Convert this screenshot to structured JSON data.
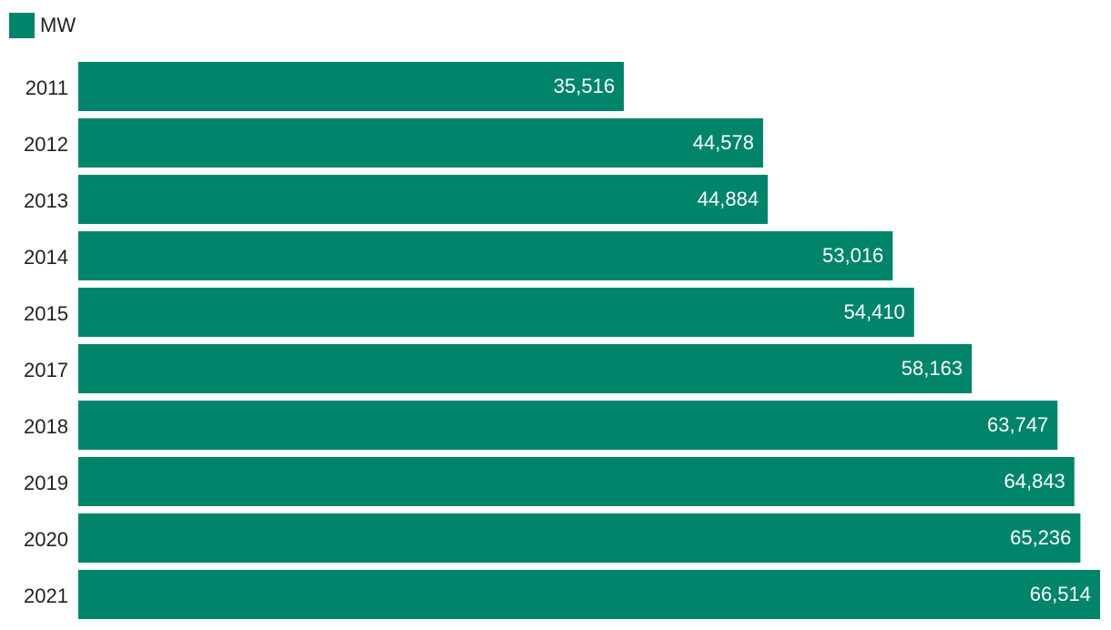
{
  "chart_data": {
    "type": "bar",
    "orientation": "horizontal",
    "categories": [
      "2011",
      "2012",
      "2013",
      "2014",
      "2015",
      "2017",
      "2018",
      "2019",
      "2020",
      "2021"
    ],
    "series": [
      {
        "name": "MW",
        "values": [
          35516,
          44578,
          44884,
          53016,
          54410,
          58163,
          63747,
          64843,
          65236,
          66514
        ],
        "labels": [
          "35,516",
          "44,578",
          "44,884",
          "53,016",
          "54,410",
          "58,163",
          "63,747",
          "64,843",
          "65,236",
          "66,514"
        ]
      }
    ],
    "title": "",
    "xlabel": "",
    "ylabel": "",
    "xlim": [
      0,
      66514
    ],
    "grid": false,
    "legend": "top-left",
    "colors": {
      "bar": "#00856a"
    }
  }
}
